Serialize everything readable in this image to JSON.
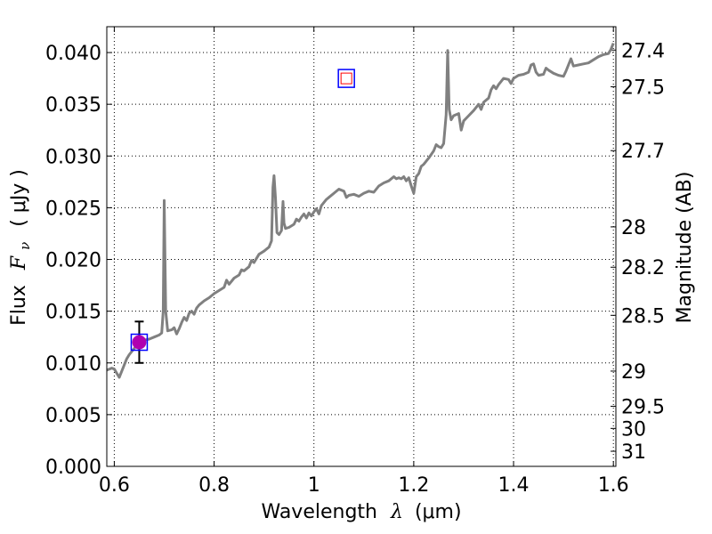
{
  "chart_data": {
    "type": "line",
    "xlabel": "Wavelength",
    "xlabel_symbol": "λ",
    "xlabel_unit": "(μm)",
    "ylabel": "Flux",
    "ylabel_symbol": "F",
    "ylabel_subscript": "ν",
    "ylabel_unit": "( μJy )",
    "y2label": "Magnitude (AB)",
    "xlim": [
      0.585,
      1.605
    ],
    "ylim": [
      0.0,
      0.0425
    ],
    "grid": true,
    "x_ticks": [
      {
        "value": 0.6,
        "label": "0.6"
      },
      {
        "value": 0.8,
        "label": "0.8"
      },
      {
        "value": 1.0,
        "label": "1"
      },
      {
        "value": 1.2,
        "label": "1.2"
      },
      {
        "value": 1.4,
        "label": "1.4"
      },
      {
        "value": 1.6,
        "label": "1.6"
      }
    ],
    "y_ticks": [
      {
        "value": 0.0,
        "label": "0.000"
      },
      {
        "value": 0.005,
        "label": "0.005"
      },
      {
        "value": 0.01,
        "label": "0.010"
      },
      {
        "value": 0.015,
        "label": "0.015"
      },
      {
        "value": 0.02,
        "label": "0.020"
      },
      {
        "value": 0.025,
        "label": "0.025"
      },
      {
        "value": 0.03,
        "label": "0.030"
      },
      {
        "value": 0.035,
        "label": "0.035"
      },
      {
        "value": 0.04,
        "label": "0.040"
      }
    ],
    "y2_ticks": [
      {
        "label": "27.4",
        "flux": 0.04024
      },
      {
        "label": "27.5",
        "flux": 0.0367
      },
      {
        "label": "27.7",
        "flux": 0.03052
      },
      {
        "label": "28",
        "flux": 0.02315
      },
      {
        "label": "28.2",
        "flux": 0.01925
      },
      {
        "label": "28.5",
        "flux": 0.0146
      },
      {
        "label": "29",
        "flux": 0.00921
      },
      {
        "label": "29.5",
        "flux": 0.00581
      },
      {
        "label": "30",
        "flux": 0.00367
      },
      {
        "label": "31",
        "flux": 0.00146
      }
    ],
    "series": [
      {
        "color": "#808080",
        "points": [
          [
            0.585,
            0.0093
          ],
          [
            0.595,
            0.0095
          ],
          [
            0.6,
            0.0094
          ],
          [
            0.605,
            0.009
          ],
          [
            0.61,
            0.0086
          ],
          [
            0.615,
            0.0092
          ],
          [
            0.62,
            0.0098
          ],
          [
            0.625,
            0.0104
          ],
          [
            0.63,
            0.0108
          ],
          [
            0.64,
            0.0114
          ],
          [
            0.65,
            0.012
          ],
          [
            0.66,
            0.0122
          ],
          [
            0.67,
            0.0123
          ],
          [
            0.68,
            0.0125
          ],
          [
            0.69,
            0.0127
          ],
          [
            0.695,
            0.0129
          ],
          [
            0.698,
            0.015
          ],
          [
            0.7,
            0.0257
          ],
          [
            0.703,
            0.015
          ],
          [
            0.707,
            0.0131
          ],
          [
            0.715,
            0.0132
          ],
          [
            0.72,
            0.0134
          ],
          [
            0.725,
            0.0128
          ],
          [
            0.73,
            0.0133
          ],
          [
            0.735,
            0.0139
          ],
          [
            0.74,
            0.0144
          ],
          [
            0.745,
            0.0141
          ],
          [
            0.75,
            0.0148
          ],
          [
            0.755,
            0.015
          ],
          [
            0.76,
            0.0147
          ],
          [
            0.765,
            0.0153
          ],
          [
            0.77,
            0.0156
          ],
          [
            0.78,
            0.016
          ],
          [
            0.79,
            0.0163
          ],
          [
            0.8,
            0.0167
          ],
          [
            0.81,
            0.017
          ],
          [
            0.82,
            0.0173
          ],
          [
            0.825,
            0.018
          ],
          [
            0.83,
            0.0176
          ],
          [
            0.84,
            0.0182
          ],
          [
            0.85,
            0.0185
          ],
          [
            0.855,
            0.019
          ],
          [
            0.86,
            0.0189
          ],
          [
            0.87,
            0.0193
          ],
          [
            0.875,
            0.0199
          ],
          [
            0.88,
            0.0197
          ],
          [
            0.89,
            0.0205
          ],
          [
            0.9,
            0.0208
          ],
          [
            0.91,
            0.0212
          ],
          [
            0.915,
            0.0218
          ],
          [
            0.918,
            0.027
          ],
          [
            0.92,
            0.0281
          ],
          [
            0.923,
            0.026
          ],
          [
            0.926,
            0.0226
          ],
          [
            0.93,
            0.0224
          ],
          [
            0.935,
            0.0228
          ],
          [
            0.938,
            0.0256
          ],
          [
            0.94,
            0.0235
          ],
          [
            0.943,
            0.023
          ],
          [
            0.95,
            0.0231
          ],
          [
            0.96,
            0.0234
          ],
          [
            0.965,
            0.0239
          ],
          [
            0.97,
            0.0237
          ],
          [
            0.975,
            0.0241
          ],
          [
            0.98,
            0.0244
          ],
          [
            0.985,
            0.024
          ],
          [
            0.99,
            0.0245
          ],
          [
            0.995,
            0.0242
          ],
          [
            1.0,
            0.0246
          ],
          [
            1.005,
            0.0249
          ],
          [
            1.01,
            0.0244
          ],
          [
            1.015,
            0.0252
          ],
          [
            1.02,
            0.0255
          ],
          [
            1.025,
            0.0258
          ],
          [
            1.03,
            0.026
          ],
          [
            1.04,
            0.0264
          ],
          [
            1.05,
            0.0268
          ],
          [
            1.06,
            0.0266
          ],
          [
            1.065,
            0.026
          ],
          [
            1.07,
            0.0262
          ],
          [
            1.08,
            0.0263
          ],
          [
            1.09,
            0.0261
          ],
          [
            1.1,
            0.0264
          ],
          [
            1.11,
            0.0266
          ],
          [
            1.12,
            0.0265
          ],
          [
            1.13,
            0.0271
          ],
          [
            1.14,
            0.0274
          ],
          [
            1.15,
            0.0276
          ],
          [
            1.16,
            0.028
          ],
          [
            1.165,
            0.0278
          ],
          [
            1.17,
            0.0279
          ],
          [
            1.175,
            0.0278
          ],
          [
            1.18,
            0.028
          ],
          [
            1.185,
            0.0276
          ],
          [
            1.19,
            0.0279
          ],
          [
            1.195,
            0.0271
          ],
          [
            1.2,
            0.0264
          ],
          [
            1.205,
            0.028
          ],
          [
            1.21,
            0.0283
          ],
          [
            1.215,
            0.029
          ],
          [
            1.22,
            0.0292
          ],
          [
            1.23,
            0.0298
          ],
          [
            1.24,
            0.0305
          ],
          [
            1.245,
            0.0311
          ],
          [
            1.25,
            0.0309
          ],
          [
            1.255,
            0.0308
          ],
          [
            1.26,
            0.0312
          ],
          [
            1.265,
            0.034
          ],
          [
            1.268,
            0.0402
          ],
          [
            1.271,
            0.0345
          ],
          [
            1.275,
            0.0335
          ],
          [
            1.28,
            0.0339
          ],
          [
            1.29,
            0.0341
          ],
          [
            1.295,
            0.0325
          ],
          [
            1.3,
            0.0334
          ],
          [
            1.31,
            0.0339
          ],
          [
            1.32,
            0.0344
          ],
          [
            1.33,
            0.035
          ],
          [
            1.335,
            0.0345
          ],
          [
            1.34,
            0.0352
          ],
          [
            1.35,
            0.0356
          ],
          [
            1.355,
            0.0364
          ],
          [
            1.36,
            0.0368
          ],
          [
            1.365,
            0.0365
          ],
          [
            1.37,
            0.0369
          ],
          [
            1.38,
            0.0375
          ],
          [
            1.39,
            0.0374
          ],
          [
            1.395,
            0.037
          ],
          [
            1.4,
            0.0375
          ],
          [
            1.41,
            0.0378
          ],
          [
            1.42,
            0.0379
          ],
          [
            1.43,
            0.0381
          ],
          [
            1.435,
            0.0388
          ],
          [
            1.44,
            0.0389
          ],
          [
            1.445,
            0.0381
          ],
          [
            1.45,
            0.0378
          ],
          [
            1.46,
            0.0379
          ],
          [
            1.465,
            0.0385
          ],
          [
            1.47,
            0.0383
          ],
          [
            1.48,
            0.038
          ],
          [
            1.49,
            0.0378
          ],
          [
            1.5,
            0.0377
          ],
          [
            1.505,
            0.0382
          ],
          [
            1.51,
            0.0388
          ],
          [
            1.515,
            0.0394
          ],
          [
            1.52,
            0.0387
          ],
          [
            1.53,
            0.0388
          ],
          [
            1.54,
            0.0389
          ],
          [
            1.55,
            0.039
          ],
          [
            1.56,
            0.0393
          ],
          [
            1.57,
            0.0396
          ],
          [
            1.58,
            0.0398
          ],
          [
            1.59,
            0.0399
          ],
          [
            1.595,
            0.0403
          ],
          [
            1.6,
            0.0409
          ]
        ]
      }
    ],
    "photometry": [
      {
        "x": 0.65,
        "y": 0.012,
        "yerr": 0.002,
        "marker": "circle-with-square",
        "fill": "#b000b0",
        "edge": "#0000ff",
        "model_marker_color": "#ff0000"
      },
      {
        "x": 1.065,
        "y": 0.0375,
        "marker": "square-in-square",
        "edge": "#0000ff",
        "model_marker_color": "#ff0000"
      }
    ]
  }
}
